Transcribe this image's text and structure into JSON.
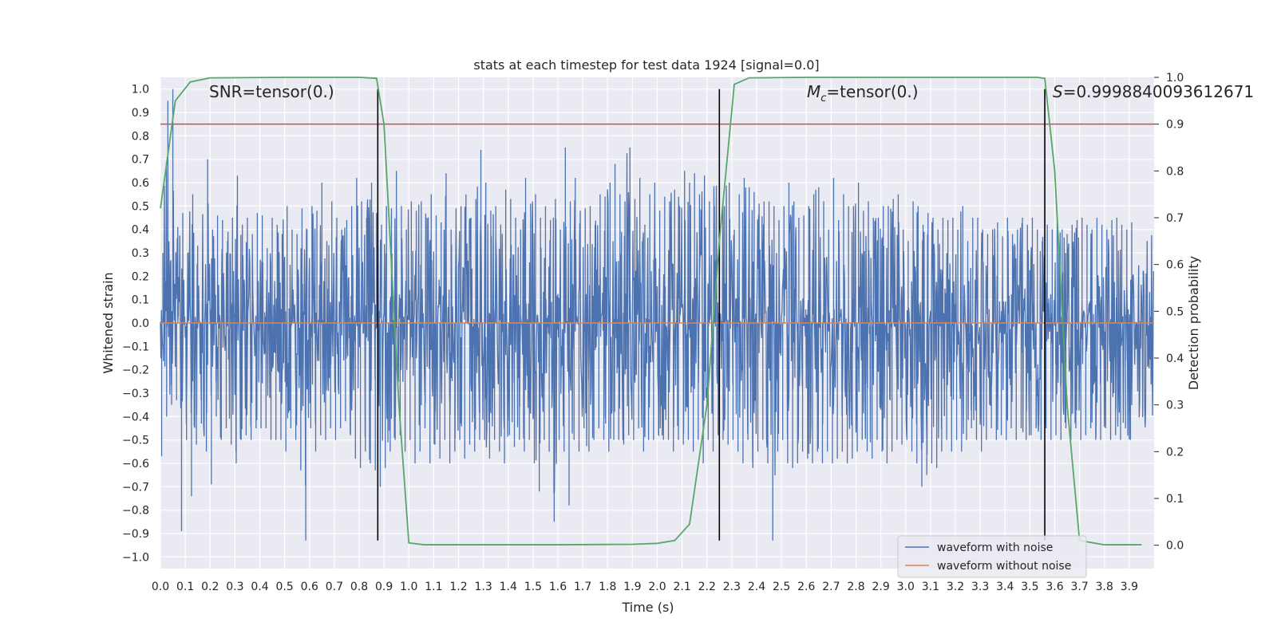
{
  "chart_data": {
    "type": "line",
    "title": "stats at each timestep for test data 1924 [signal=0.0]",
    "xlabel": "Time (s)",
    "ylabel": "Whitened strain",
    "y2label": "Detection probability",
    "xlim": [
      0.0,
      4.0
    ],
    "ylim": [
      -1.05,
      1.05
    ],
    "y2lim": [
      -0.05,
      1.0
    ],
    "grid": true,
    "xticks": [
      "0.0",
      "0.1",
      "0.2",
      "0.3",
      "0.4",
      "0.5",
      "0.6",
      "0.7",
      "0.8",
      "0.9",
      "1.0",
      "1.1",
      "1.2",
      "1.3",
      "1.4",
      "1.5",
      "1.6",
      "1.7",
      "1.8",
      "1.9",
      "2.0",
      "2.1",
      "2.2",
      "2.3",
      "2.4",
      "2.5",
      "2.6",
      "2.7",
      "2.8",
      "2.9",
      "3.0",
      "3.1",
      "3.2",
      "3.3",
      "3.4",
      "3.5",
      "3.6",
      "3.7",
      "3.8",
      "3.9"
    ],
    "yticks": [
      "1.0",
      "0.9",
      "0.8",
      "0.7",
      "0.6",
      "0.5",
      "0.4",
      "0.3",
      "0.2",
      "0.1",
      "0.0",
      "−0.1",
      "−0.2",
      "−0.3",
      "−0.4",
      "−0.5",
      "−0.6",
      "−0.7",
      "−0.8",
      "−0.9",
      "−1.0"
    ],
    "y2ticks": [
      "1.0",
      "0.9",
      "0.8",
      "0.7",
      "0.6",
      "0.5",
      "0.4",
      "0.3",
      "0.2",
      "0.1",
      "0.0"
    ],
    "annotations": {
      "snr": "SNR=tensor(0.)",
      "mc_symbol": "M",
      "mc_sub": "c",
      "mc_rest": "=tensor(0.)",
      "s_symbol": "S",
      "s_rest": "=0.9998840093612671"
    },
    "series": [
      {
        "name": "waveform with noise",
        "color": "#4c72b0",
        "description": "noise envelope sampled every 0.02 s",
        "x_step": 0.02,
        "upper": [
          0.3,
          0.95,
          1.0,
          0.41,
          0.47,
          0.3,
          0.55,
          0.33,
          0.25,
          0.7,
          0.4,
          0.46,
          0.44,
          0.35,
          0.45,
          0.63,
          0.42,
          0.45,
          0.38,
          0.47,
          0.46,
          0.32,
          0.45,
          0.42,
          0.38,
          0.5,
          0.4,
          0.38,
          0.49,
          0.4,
          0.5,
          0.48,
          0.6,
          0.35,
          0.52,
          0.45,
          0.4,
          0.44,
          0.5,
          0.62,
          0.52,
          0.45,
          0.6,
          0.47,
          0.42,
          0.5,
          0.49,
          0.65,
          0.5,
          0.4,
          0.52,
          0.48,
          0.52,
          0.45,
          0.55,
          0.46,
          0.43,
          0.64,
          0.4,
          0.49,
          0.5,
          0.55,
          0.45,
          0.53,
          0.74,
          0.6,
          0.48,
          0.5,
          0.42,
          0.57,
          0.53,
          0.45,
          0.4,
          0.62,
          0.51,
          0.55,
          0.45,
          0.5,
          0.44,
          0.53,
          0.4,
          0.75,
          0.52,
          0.62,
          0.48,
          0.49,
          0.5,
          0.42,
          0.55,
          0.54,
          0.6,
          0.68,
          0.55,
          0.52,
          0.75,
          0.53,
          0.62,
          0.42,
          0.55,
          0.6,
          0.48,
          0.54,
          0.52,
          0.57,
          0.5,
          0.65,
          0.6,
          0.64,
          0.55,
          0.63,
          0.52,
          0.5,
          0.75,
          0.5,
          0.6,
          0.4,
          0.55,
          0.62,
          0.58,
          0.56,
          0.51,
          0.52,
          0.52,
          0.5,
          0.44,
          0.5,
          0.6,
          0.52,
          0.45,
          0.46,
          0.5,
          0.55,
          0.58,
          0.52,
          0.4,
          0.62,
          0.44,
          0.55,
          0.5,
          0.5,
          0.6,
          0.48,
          0.52,
          0.45,
          0.45,
          0.5,
          0.5,
          0.53,
          0.55,
          0.4,
          0.35,
          0.52,
          0.5,
          0.42,
          0.47,
          0.45,
          0.4,
          0.45,
          0.44,
          0.45,
          0.4,
          0.5,
          0.35,
          0.45,
          0.45,
          0.4,
          0.38,
          0.4,
          0.43,
          0.37,
          0.45,
          0.38,
          0.4,
          0.45,
          0.42,
          0.45,
          0.4,
          0.35,
          0.42,
          0.4,
          0.45,
          0.4,
          0.38,
          0.42,
          0.44,
          0.45,
          0.42,
          0.4,
          0.45,
          0.42,
          0.4,
          0.44,
          0.45,
          0.42,
          0.4,
          0.43
        ],
        "lower": [
          -0.57,
          -0.4,
          -0.35,
          -0.33,
          -0.89,
          -0.5,
          -0.74,
          -0.52,
          -0.43,
          -0.55,
          -0.69,
          -0.4,
          -0.5,
          -0.45,
          -0.52,
          -0.6,
          -0.5,
          -0.48,
          -0.5,
          -0.45,
          -0.45,
          -0.45,
          -0.5,
          -0.5,
          -0.5,
          -0.55,
          -0.45,
          -0.5,
          -0.63,
          -0.93,
          -0.45,
          -0.55,
          -0.48,
          -0.5,
          -0.45,
          -0.5,
          -0.45,
          -0.42,
          -0.48,
          -0.58,
          -0.62,
          -0.55,
          -0.6,
          -0.63,
          -0.7,
          -0.62,
          -0.55,
          -0.5,
          -0.48,
          -0.55,
          -0.5,
          -0.6,
          -0.55,
          -0.45,
          -0.6,
          -0.52,
          -0.58,
          -0.5,
          -0.6,
          -0.55,
          -0.5,
          -0.58,
          -0.52,
          -0.55,
          -0.5,
          -0.5,
          -0.58,
          -0.5,
          -0.55,
          -0.6,
          -0.48,
          -0.53,
          -0.5,
          -0.55,
          -0.5,
          -0.6,
          -0.72,
          -0.5,
          -0.55,
          -0.85,
          -0.5,
          -0.55,
          -0.78,
          -0.5,
          -0.55,
          -0.45,
          -0.55,
          -0.5,
          -0.45,
          -0.5,
          -0.55,
          -0.5,
          -0.5,
          -0.52,
          -0.48,
          -0.5,
          -0.45,
          -0.55,
          -0.5,
          -0.5,
          -0.48,
          -0.5,
          -0.5,
          -0.55,
          -0.5,
          -0.52,
          -0.5,
          -0.55,
          -0.5,
          -0.6,
          -0.5,
          -0.55,
          -0.48,
          -0.5,
          -0.52,
          -0.5,
          -0.55,
          -0.6,
          -0.5,
          -0.62,
          -0.55,
          -0.5,
          -0.6,
          -0.93,
          -0.55,
          -0.5,
          -0.6,
          -0.62,
          -0.6,
          -0.55,
          -0.58,
          -0.6,
          -0.55,
          -0.6,
          -0.55,
          -0.6,
          -0.58,
          -0.55,
          -0.6,
          -0.58,
          -0.55,
          -0.5,
          -0.55,
          -0.58,
          -0.5,
          -0.55,
          -0.6,
          -0.55,
          -0.5,
          -0.52,
          -0.5,
          -0.55,
          -0.6,
          -0.7,
          -0.65,
          -0.6,
          -0.62,
          -0.55,
          -0.5,
          -0.55,
          -0.5,
          -0.55,
          -0.5,
          -0.45,
          -0.5,
          -0.55,
          -0.5,
          -0.45,
          -0.5,
          -0.48,
          -0.5,
          -0.45,
          -0.5,
          -0.45,
          -0.5,
          -0.48,
          -0.45,
          -0.5,
          -0.45,
          -0.5,
          -0.48,
          -0.5,
          -0.45,
          -0.5,
          -0.45,
          -0.5,
          -0.48,
          -0.45,
          -0.5,
          -0.5,
          -0.45,
          -0.5,
          -0.48,
          -0.5,
          -0.45,
          -0.5
        ]
      },
      {
        "name": "waveform without noise",
        "color": "#dd8452",
        "x": [
          0.0,
          4.0
        ],
        "y": [
          0.0,
          0.0
        ]
      },
      {
        "name": "detection probability",
        "axis": "right",
        "color": "#55a868",
        "x": [
          0.0,
          0.06,
          0.12,
          0.2,
          0.5,
          0.8,
          0.87,
          0.9,
          0.93,
          0.96,
          1.0,
          1.06,
          1.3,
          1.6,
          1.9,
          2.0,
          2.07,
          2.13,
          2.2,
          2.25,
          2.31,
          2.37,
          2.6,
          3.0,
          3.4,
          3.53,
          3.56,
          3.6,
          3.65,
          3.7,
          3.8,
          3.95
        ],
        "y": [
          0.72,
          0.95,
          0.99,
          0.999,
          1.0,
          1.0,
          0.998,
          0.9,
          0.6,
          0.3,
          0.005,
          0.001,
          0.001,
          0.001,
          0.002,
          0.004,
          0.01,
          0.045,
          0.3,
          0.65,
          0.985,
          0.999,
          1.0,
          1.0,
          1.0,
          1.0,
          0.998,
          0.8,
          0.3,
          0.01,
          0.001,
          0.001
        ]
      }
    ],
    "hlines": [
      {
        "name": "threshold",
        "axis": "right",
        "y": 0.9,
        "color": "#c44e52"
      }
    ],
    "vlines": [
      {
        "x": 0.875,
        "color": "#000000"
      },
      {
        "x": 2.25,
        "color": "#000000"
      },
      {
        "x": 3.56,
        "color": "#000000"
      }
    ],
    "legend": {
      "location": "lower-right",
      "entries": [
        {
          "label": "waveform with noise",
          "color": "#4c72b0"
        },
        {
          "label": "waveform without noise",
          "color": "#dd8452"
        }
      ]
    }
  }
}
